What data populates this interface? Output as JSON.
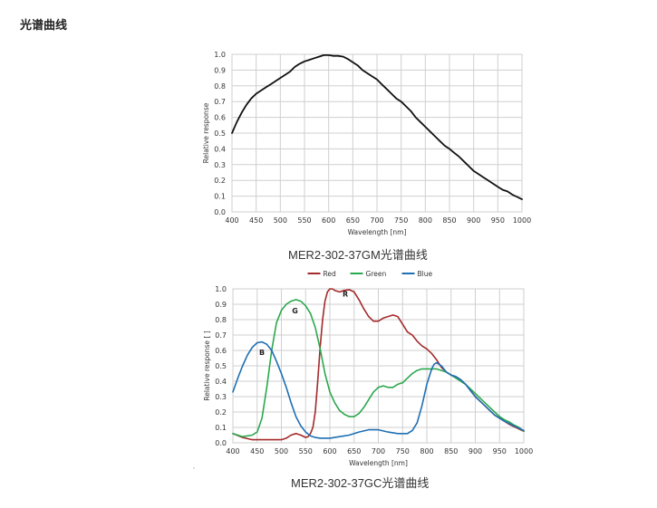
{
  "page": {
    "title": "光谱曲线"
  },
  "captions": {
    "mono": "MER2-302-37GM光谱曲线",
    "color": "MER2-302-37GC光谱曲线"
  },
  "colors": {
    "grid": "#cfcfcf",
    "axis_text": "#333333",
    "mono_line": "#111111",
    "red": "#a52a2a",
    "green": "#2aa84e",
    "blue": "#1f6fb2"
  },
  "chart_data": [
    {
      "type": "line",
      "title": "",
      "xlabel": "Wavelength [nm]",
      "ylabel": "Relative  response",
      "xlim": [
        400,
        1000
      ],
      "ylim": [
        0,
        1.0
      ],
      "xticks": [
        400,
        450,
        500,
        550,
        600,
        650,
        700,
        750,
        800,
        850,
        900,
        950,
        1000
      ],
      "yticks": [
        "0.0",
        "0.1",
        "0.2",
        "0.3",
        "0.4",
        "0.5",
        "0.6",
        "0.7",
        "0.8",
        "0.9",
        "1.0"
      ],
      "grid": true,
      "series": [
        {
          "color": "#111111",
          "x": [
            400,
            410,
            420,
            430,
            440,
            450,
            460,
            470,
            480,
            490,
            500,
            510,
            520,
            530,
            540,
            550,
            560,
            570,
            580,
            590,
            600,
            610,
            620,
            630,
            640,
            650,
            660,
            670,
            680,
            690,
            700,
            710,
            720,
            730,
            740,
            750,
            760,
            770,
            780,
            790,
            800,
            810,
            820,
            830,
            840,
            850,
            860,
            870,
            880,
            890,
            900,
            910,
            920,
            930,
            940,
            950,
            960,
            970,
            980,
            990,
            1000
          ],
          "y": [
            0.5,
            0.57,
            0.63,
            0.68,
            0.72,
            0.75,
            0.77,
            0.79,
            0.81,
            0.83,
            0.85,
            0.87,
            0.89,
            0.92,
            0.94,
            0.955,
            0.965,
            0.975,
            0.985,
            0.995,
            0.995,
            0.99,
            0.99,
            0.985,
            0.97,
            0.95,
            0.93,
            0.9,
            0.88,
            0.86,
            0.84,
            0.81,
            0.78,
            0.75,
            0.72,
            0.7,
            0.67,
            0.64,
            0.6,
            0.57,
            0.54,
            0.51,
            0.48,
            0.45,
            0.42,
            0.4,
            0.375,
            0.35,
            0.32,
            0.29,
            0.26,
            0.24,
            0.22,
            0.2,
            0.18,
            0.16,
            0.14,
            0.13,
            0.11,
            0.095,
            0.08
          ]
        }
      ]
    },
    {
      "type": "line",
      "title": "",
      "xlabel": "Wavelength [nm]",
      "ylabel": "Relative response [ ]",
      "xlim": [
        400,
        1000
      ],
      "ylim": [
        0,
        1.0
      ],
      "xticks": [
        400,
        450,
        500,
        550,
        600,
        650,
        700,
        750,
        800,
        850,
        900,
        950,
        1000
      ],
      "yticks": [
        "0.0",
        "0.1",
        "0.2",
        "0.3",
        "0.4",
        "0.5",
        "0.6",
        "0.7",
        "0.8",
        "0.9",
        "1.0"
      ],
      "grid": true,
      "legend": "top",
      "annotations": [
        {
          "text": "R",
          "x": 632,
          "y": 0.95
        },
        {
          "text": "G",
          "x": 528,
          "y": 0.84
        },
        {
          "text": "B",
          "x": 460,
          "y": 0.57
        }
      ],
      "series": [
        {
          "name": "Red",
          "color": "#a52a2a",
          "x": [
            400,
            420,
            440,
            460,
            480,
            500,
            510,
            520,
            530,
            540,
            550,
            555,
            560,
            565,
            570,
            575,
            580,
            585,
            590,
            595,
            600,
            605,
            610,
            620,
            630,
            640,
            650,
            660,
            670,
            680,
            690,
            700,
            710,
            720,
            730,
            740,
            750,
            760,
            770,
            780,
            790,
            800,
            810,
            820,
            830,
            840,
            850,
            860,
            870,
            880,
            890,
            900,
            910,
            920,
            930,
            940,
            950,
            960,
            970,
            980,
            990,
            1000
          ],
          "y": [
            0.06,
            0.035,
            0.02,
            0.02,
            0.02,
            0.02,
            0.03,
            0.05,
            0.06,
            0.05,
            0.035,
            0.04,
            0.06,
            0.1,
            0.2,
            0.4,
            0.62,
            0.8,
            0.92,
            0.98,
            1.0,
            1.0,
            0.99,
            0.98,
            0.99,
            0.995,
            0.98,
            0.93,
            0.87,
            0.82,
            0.79,
            0.79,
            0.81,
            0.82,
            0.83,
            0.82,
            0.77,
            0.72,
            0.7,
            0.66,
            0.63,
            0.61,
            0.58,
            0.54,
            0.49,
            0.46,
            0.44,
            0.43,
            0.41,
            0.38,
            0.34,
            0.3,
            0.27,
            0.24,
            0.21,
            0.18,
            0.16,
            0.14,
            0.12,
            0.105,
            0.09,
            0.075
          ]
        },
        {
          "name": "Green",
          "color": "#2aa84e",
          "x": [
            400,
            420,
            440,
            450,
            460,
            470,
            480,
            490,
            500,
            510,
            520,
            530,
            540,
            550,
            560,
            570,
            580,
            590,
            600,
            610,
            620,
            630,
            640,
            650,
            660,
            670,
            680,
            690,
            700,
            710,
            720,
            730,
            740,
            750,
            760,
            770,
            780,
            790,
            800,
            810,
            820,
            830,
            840,
            850,
            860,
            870,
            880,
            890,
            900,
            910,
            920,
            930,
            940,
            950,
            960,
            970,
            980,
            990,
            1000
          ],
          "y": [
            0.06,
            0.04,
            0.05,
            0.07,
            0.16,
            0.36,
            0.6,
            0.78,
            0.86,
            0.9,
            0.92,
            0.93,
            0.92,
            0.89,
            0.84,
            0.75,
            0.61,
            0.45,
            0.33,
            0.26,
            0.21,
            0.185,
            0.17,
            0.17,
            0.19,
            0.23,
            0.28,
            0.33,
            0.36,
            0.37,
            0.36,
            0.36,
            0.38,
            0.39,
            0.42,
            0.45,
            0.47,
            0.48,
            0.48,
            0.48,
            0.48,
            0.47,
            0.46,
            0.44,
            0.42,
            0.4,
            0.38,
            0.35,
            0.32,
            0.29,
            0.26,
            0.23,
            0.2,
            0.17,
            0.15,
            0.135,
            0.115,
            0.1,
            0.075
          ]
        },
        {
          "name": "Blue",
          "color": "#1f6fb2",
          "x": [
            400,
            410,
            420,
            430,
            440,
            450,
            460,
            470,
            480,
            490,
            500,
            510,
            520,
            530,
            540,
            550,
            560,
            570,
            580,
            590,
            600,
            620,
            640,
            660,
            680,
            700,
            720,
            740,
            760,
            770,
            780,
            790,
            800,
            810,
            815,
            820,
            830,
            840,
            850,
            860,
            870,
            880,
            890,
            900,
            910,
            920,
            930,
            940,
            950,
            960,
            970,
            980,
            990,
            1000
          ],
          "y": [
            0.33,
            0.42,
            0.5,
            0.57,
            0.62,
            0.65,
            0.655,
            0.64,
            0.6,
            0.53,
            0.45,
            0.36,
            0.26,
            0.17,
            0.11,
            0.07,
            0.045,
            0.035,
            0.03,
            0.03,
            0.03,
            0.04,
            0.05,
            0.07,
            0.085,
            0.085,
            0.07,
            0.06,
            0.06,
            0.08,
            0.13,
            0.24,
            0.38,
            0.48,
            0.51,
            0.52,
            0.5,
            0.46,
            0.44,
            0.43,
            0.41,
            0.38,
            0.34,
            0.3,
            0.27,
            0.24,
            0.21,
            0.18,
            0.16,
            0.14,
            0.125,
            0.11,
            0.095,
            0.08
          ]
        }
      ]
    }
  ]
}
